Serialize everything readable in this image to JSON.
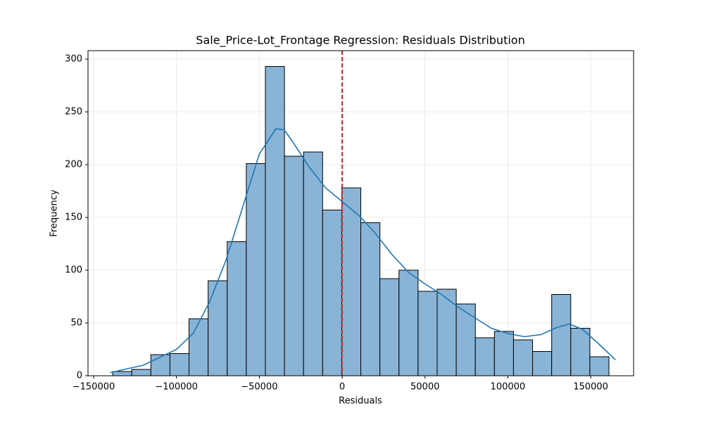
{
  "chart_data": {
    "type": "histogram",
    "title": "Sale_Price-Lot_Frontage Regression: Residuals Distribution",
    "xlabel": "Residuals",
    "ylabel": "Frequency",
    "bins": [
      -138500,
      -126980,
      -115460,
      -103940,
      -92420,
      -80900,
      -69380,
      -57860,
      -46340,
      -34820,
      -23300,
      -11780,
      -260,
      11260,
      22780,
      34300,
      45820,
      57340,
      68860,
      80380,
      91900,
      103420,
      114940,
      126460,
      137980,
      149500,
      161020
    ],
    "values": [
      4,
      6,
      20,
      21,
      54,
      90,
      127,
      201,
      293,
      208,
      212,
      157,
      178,
      145,
      92,
      100,
      80,
      82,
      68,
      36,
      42,
      34,
      23,
      77,
      45,
      18
    ],
    "color": "#8ab4d6",
    "edgecolor": "#000000",
    "kde": {
      "color": "#1f77b4",
      "x": [
        -140000,
        -120000,
        -100000,
        -90000,
        -80000,
        -70000,
        -60000,
        -50000,
        -40000,
        -35000,
        -30000,
        -20000,
        -10000,
        0,
        10000,
        20000,
        30000,
        40000,
        50000,
        60000,
        70000,
        80000,
        90000,
        100000,
        110000,
        120000,
        130000,
        137000,
        145000,
        155000,
        165000
      ],
      "values": [
        3,
        10,
        25,
        40,
        70,
        110,
        160,
        210,
        234,
        233,
        222,
        198,
        178,
        165,
        152,
        135,
        115,
        98,
        87,
        77,
        65,
        55,
        45,
        40,
        37,
        39,
        46,
        49,
        44,
        30,
        15
      ]
    },
    "vline": 0,
    "vline_color": "#d62728",
    "xlim": [
      -153400,
      175900
    ],
    "xticks": [
      {
        "value": -150000,
        "label": "−150000"
      },
      {
        "value": -100000,
        "label": "−100000"
      },
      {
        "value": -50000,
        "label": "−50000"
      },
      0,
      50000,
      100000,
      150000
    ],
    "ylim": [
      0,
      308
    ],
    "yticks": [
      0,
      50,
      100,
      150,
      200,
      250,
      300
    ],
    "grid": true
  }
}
